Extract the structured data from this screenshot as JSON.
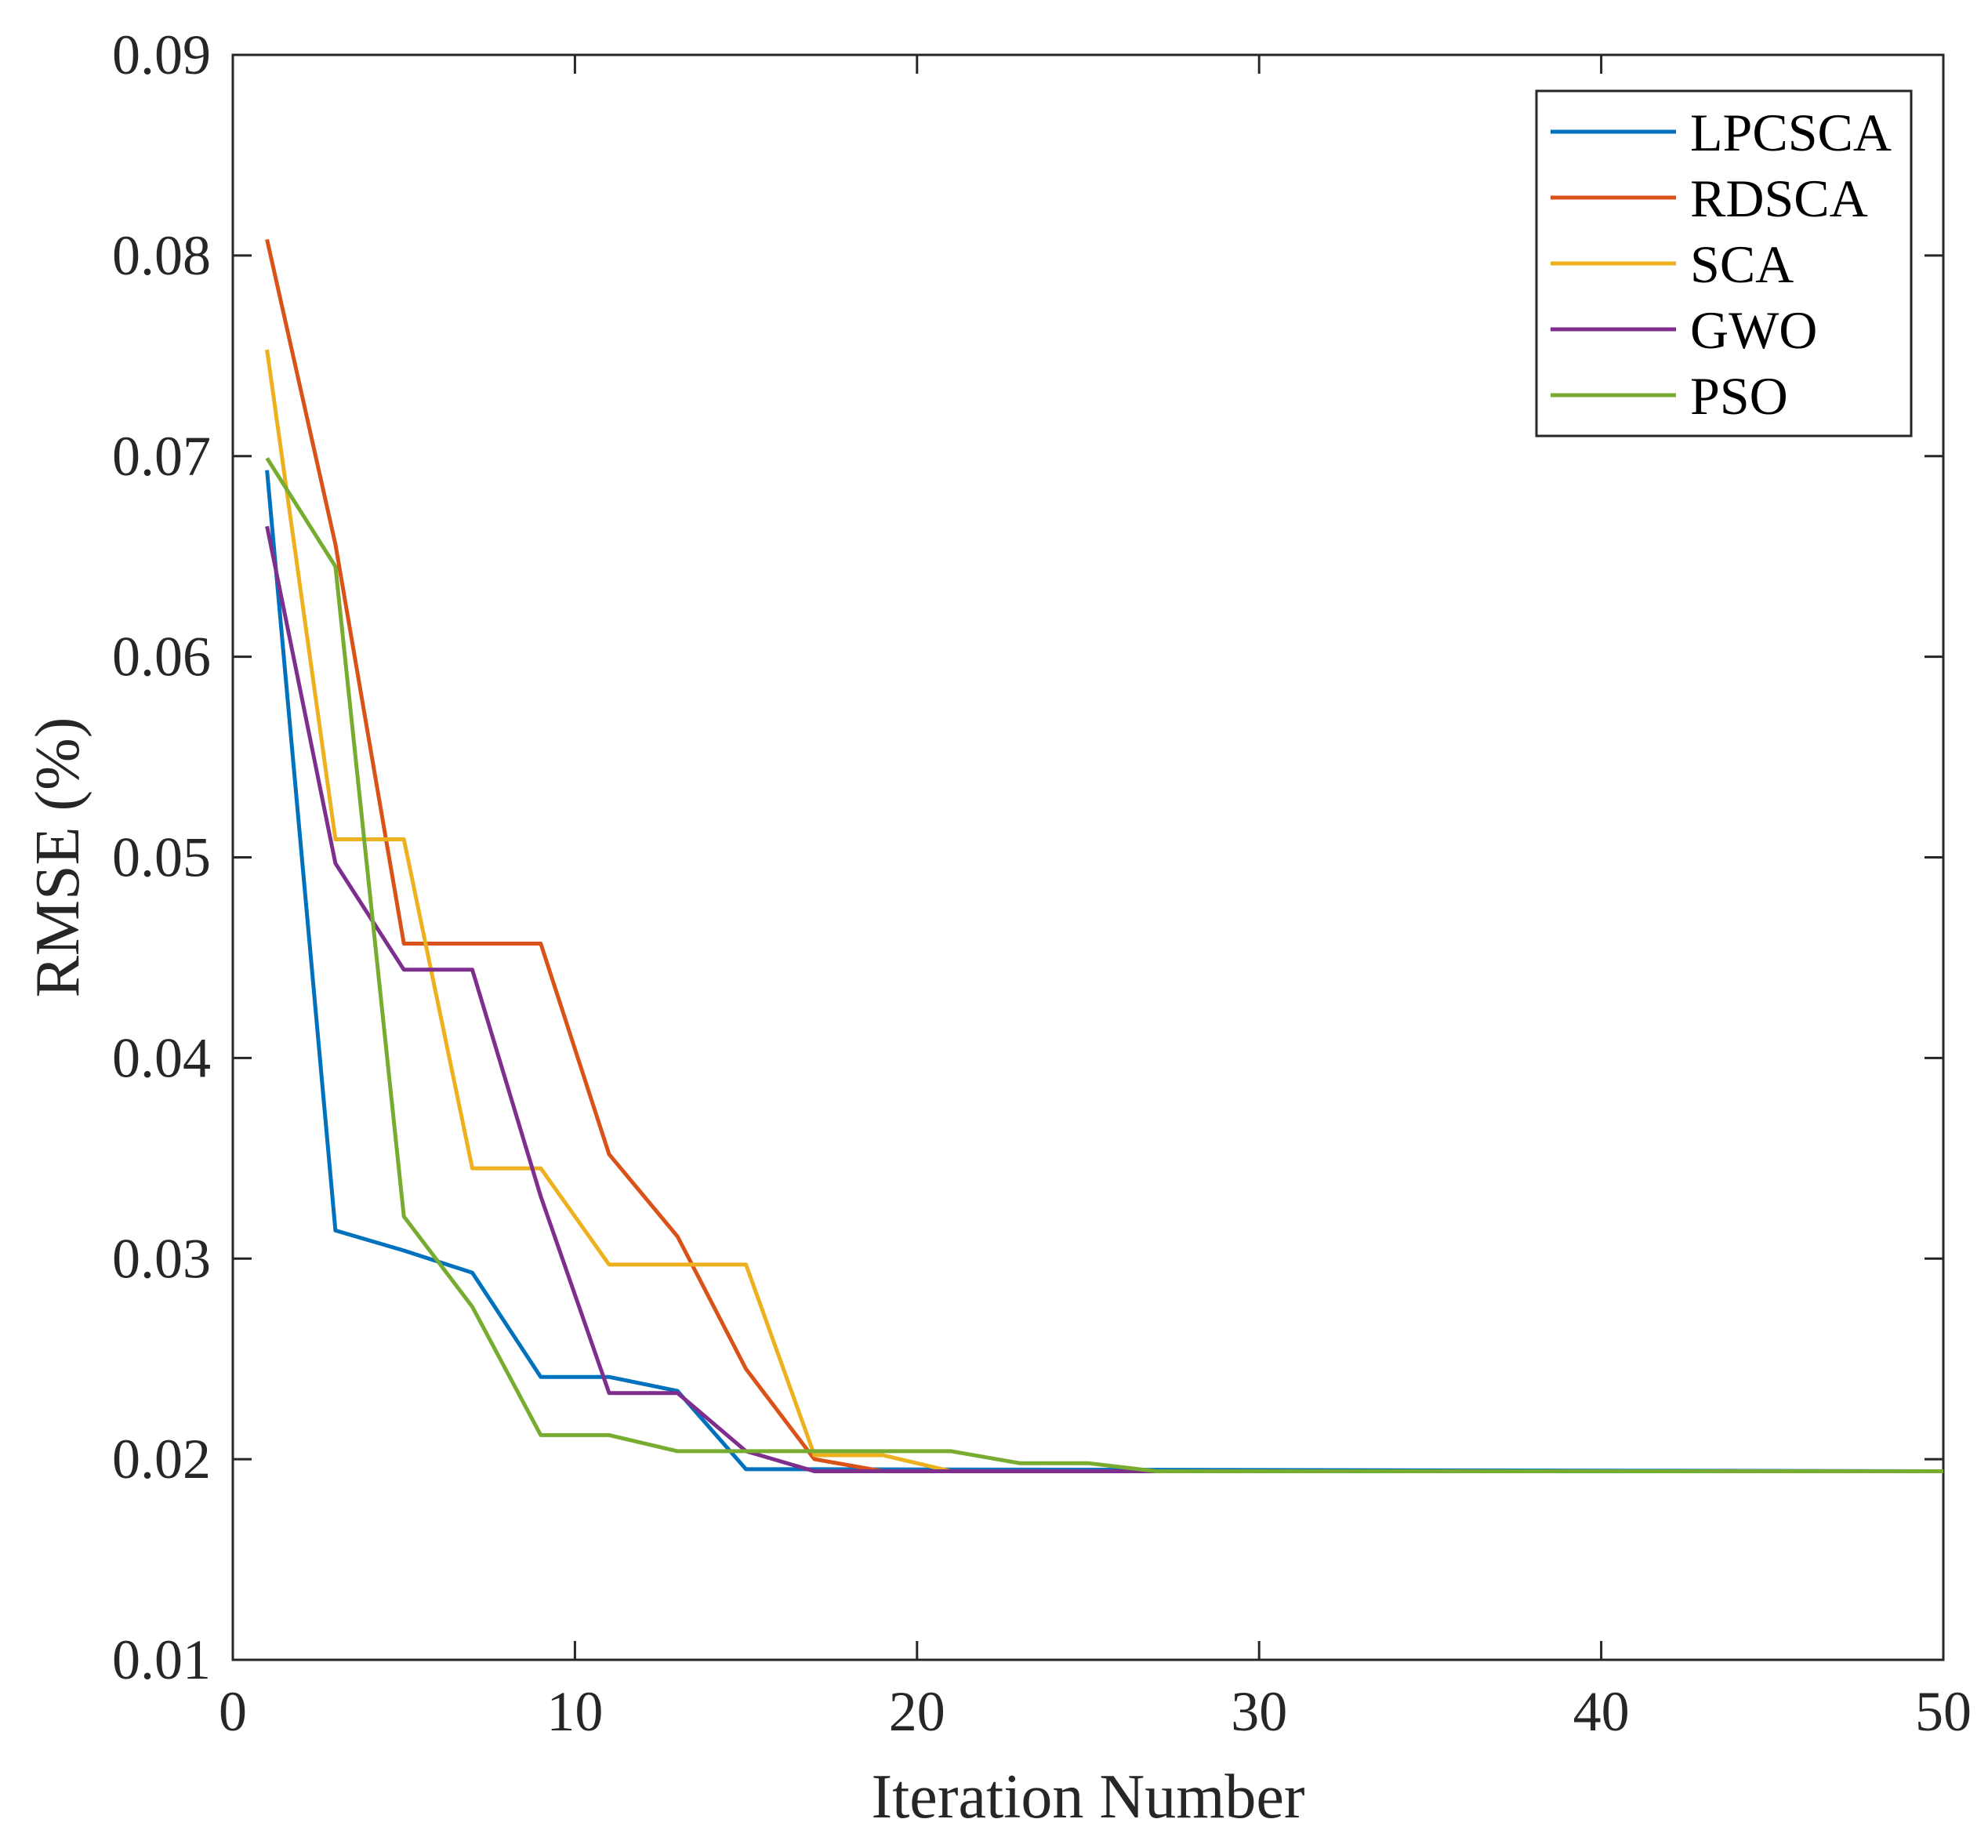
{
  "chart_data": {
    "type": "line",
    "title": "",
    "xlabel": "Iteration Number",
    "ylabel": "RMSE (%)",
    "xlim": [
      0,
      50
    ],
    "ylim": [
      0.01,
      0.09
    ],
    "xticks": [
      0,
      10,
      20,
      30,
      40,
      50
    ],
    "xtick_labels": [
      "0",
      "10",
      "20",
      "30",
      "40",
      "50"
    ],
    "yticks": [
      0.01,
      0.02,
      0.03,
      0.04,
      0.05,
      0.06,
      0.07,
      0.08,
      0.09
    ],
    "ytick_labels": [
      "0.01",
      "0.02",
      "0.03",
      "0.04",
      "0.05",
      "0.06",
      "0.07",
      "0.08",
      "0.09"
    ],
    "grid": false,
    "legend_position": "top-right",
    "series": [
      {
        "name": "LPCSCA",
        "color": "#0072BD",
        "x": [
          1,
          3,
          5,
          7,
          9,
          11,
          13,
          15,
          17,
          50
        ],
        "y": [
          0.0693,
          0.0314,
          0.0304,
          0.0293,
          0.0241,
          0.0241,
          0.0234,
          0.0195,
          0.0195,
          0.0194
        ]
      },
      {
        "name": "RDSCA",
        "color": "#D95319",
        "x": [
          1,
          3,
          5,
          7,
          9,
          11,
          13,
          15,
          17,
          19,
          50
        ],
        "y": [
          0.0808,
          0.0656,
          0.0457,
          0.0457,
          0.0457,
          0.0352,
          0.0311,
          0.0245,
          0.02,
          0.0194,
          0.0194
        ]
      },
      {
        "name": "SCA",
        "color": "#EDB120",
        "x": [
          1,
          3,
          5,
          7,
          9,
          11,
          13,
          15,
          17,
          19,
          21,
          50
        ],
        "y": [
          0.0753,
          0.0509,
          0.0509,
          0.0345,
          0.0345,
          0.0297,
          0.0297,
          0.0297,
          0.0202,
          0.0202,
          0.0194,
          0.0194
        ]
      },
      {
        "name": "GWO",
        "color": "#7E2F8E",
        "x": [
          1,
          3,
          5,
          7,
          9,
          11,
          13,
          15,
          17,
          50
        ],
        "y": [
          0.0665,
          0.0497,
          0.0444,
          0.0444,
          0.0331,
          0.0233,
          0.0233,
          0.0204,
          0.0194,
          0.0194
        ]
      },
      {
        "name": "PSO",
        "color": "#77AC30",
        "x": [
          1,
          3,
          5,
          7,
          9,
          11,
          13,
          15,
          17,
          19,
          21,
          23,
          25,
          27,
          50
        ],
        "y": [
          0.0699,
          0.0645,
          0.0321,
          0.0276,
          0.0212,
          0.0212,
          0.0204,
          0.0204,
          0.0204,
          0.0204,
          0.0204,
          0.0198,
          0.0198,
          0.0194,
          0.0194
        ]
      }
    ]
  }
}
